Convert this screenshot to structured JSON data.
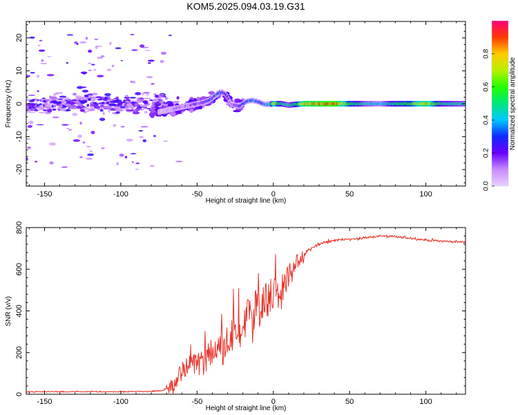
{
  "title": "KOM5.2025.094.03.19.G31",
  "colors": {
    "snr_line": "#e8322a",
    "axis": "#000000"
  },
  "chart_data": [
    {
      "type": "heatmap",
      "name": "spectrogram",
      "xlabel": "Height of straight line (km)",
      "ylabel": "Frequency (Hz)",
      "xlim": [
        -162,
        126
      ],
      "ylim": [
        -25,
        25
      ],
      "xticks": [
        -150,
        -100,
        -50,
        0,
        50,
        100
      ],
      "yticks": [
        -20,
        -10,
        0,
        10,
        20
      ],
      "colorbar": {
        "label": "Normalized spectral amplitude",
        "range": [
          0,
          1
        ],
        "ticks": [
          0.0,
          0.2,
          0.4,
          0.6,
          0.8
        ]
      },
      "ridge": {
        "x": [
          -75,
          -70,
          -65,
          -60,
          -55,
          -50,
          -45,
          -42,
          -38,
          -35,
          -32,
          -30,
          -28,
          -25,
          -22,
          -20,
          -17,
          -14,
          -11,
          -8,
          -5,
          -2,
          0,
          5,
          10,
          15,
          20,
          30,
          40,
          50,
          60,
          70,
          80,
          90,
          100,
          110,
          126
        ],
        "freq": [
          -2.5,
          -2,
          -1.5,
          -1,
          -0.5,
          0,
          0.5,
          1,
          2.5,
          3.5,
          3.2,
          2,
          0,
          -0.5,
          -0.6,
          0,
          0.8,
          1,
          0.8,
          0.2,
          -0.2,
          -0.1,
          0,
          0,
          -0.4,
          -0.2,
          0,
          0,
          0,
          0,
          0,
          0,
          0,
          0,
          0,
          0,
          0
        ],
        "amplitude": [
          0.05,
          0.07,
          0.1,
          0.12,
          0.15,
          0.18,
          0.2,
          0.25,
          0.3,
          0.32,
          0.25,
          0.15,
          0.1,
          0.2,
          0.25,
          0.25,
          0.3,
          0.35,
          0.3,
          0.25,
          0.35,
          0.4,
          0.75,
          0.5,
          0.45,
          0.55,
          0.8,
          0.85,
          0.9,
          0.6,
          0.45,
          0.4,
          0.55,
          0.6,
          0.8,
          0.5,
          0.45
        ]
      }
    },
    {
      "type": "line",
      "name": "snr",
      "xlabel": "Height of straight line (km)",
      "ylabel": "SNR (v/v)",
      "xlim": [
        -162,
        126
      ],
      "ylim": [
        0,
        800
      ],
      "xticks": [
        -150,
        -100,
        -50,
        0,
        50,
        100
      ],
      "yticks": [
        0,
        200,
        400,
        600,
        800
      ],
      "envelope": {
        "x": [
          -162,
          -140,
          -100,
          -80,
          -72,
          -65,
          -60,
          -55,
          -50,
          -45,
          -40,
          -35,
          -30,
          -25,
          -20,
          -15,
          -10,
          -5,
          0,
          5,
          10,
          15,
          20,
          25,
          30,
          40,
          50,
          60,
          70,
          80,
          90,
          100,
          110,
          126
        ],
        "snr": [
          12,
          12,
          12,
          14,
          18,
          50,
          110,
          150,
          140,
          160,
          200,
          230,
          260,
          310,
          340,
          380,
          410,
          450,
          480,
          520,
          580,
          630,
          670,
          700,
          720,
          740,
          745,
          750,
          760,
          755,
          750,
          740,
          735,
          730
        ]
      },
      "noise_amplitude": {
        "x": [
          -162,
          -75,
          -68,
          -60,
          -50,
          -40,
          -30,
          -20,
          -10,
          0,
          10,
          20,
          30,
          50,
          126
        ],
        "amp": [
          6,
          6,
          25,
          45,
          60,
          70,
          80,
          90,
          100,
          80,
          50,
          25,
          15,
          12,
          12
        ]
      }
    }
  ]
}
